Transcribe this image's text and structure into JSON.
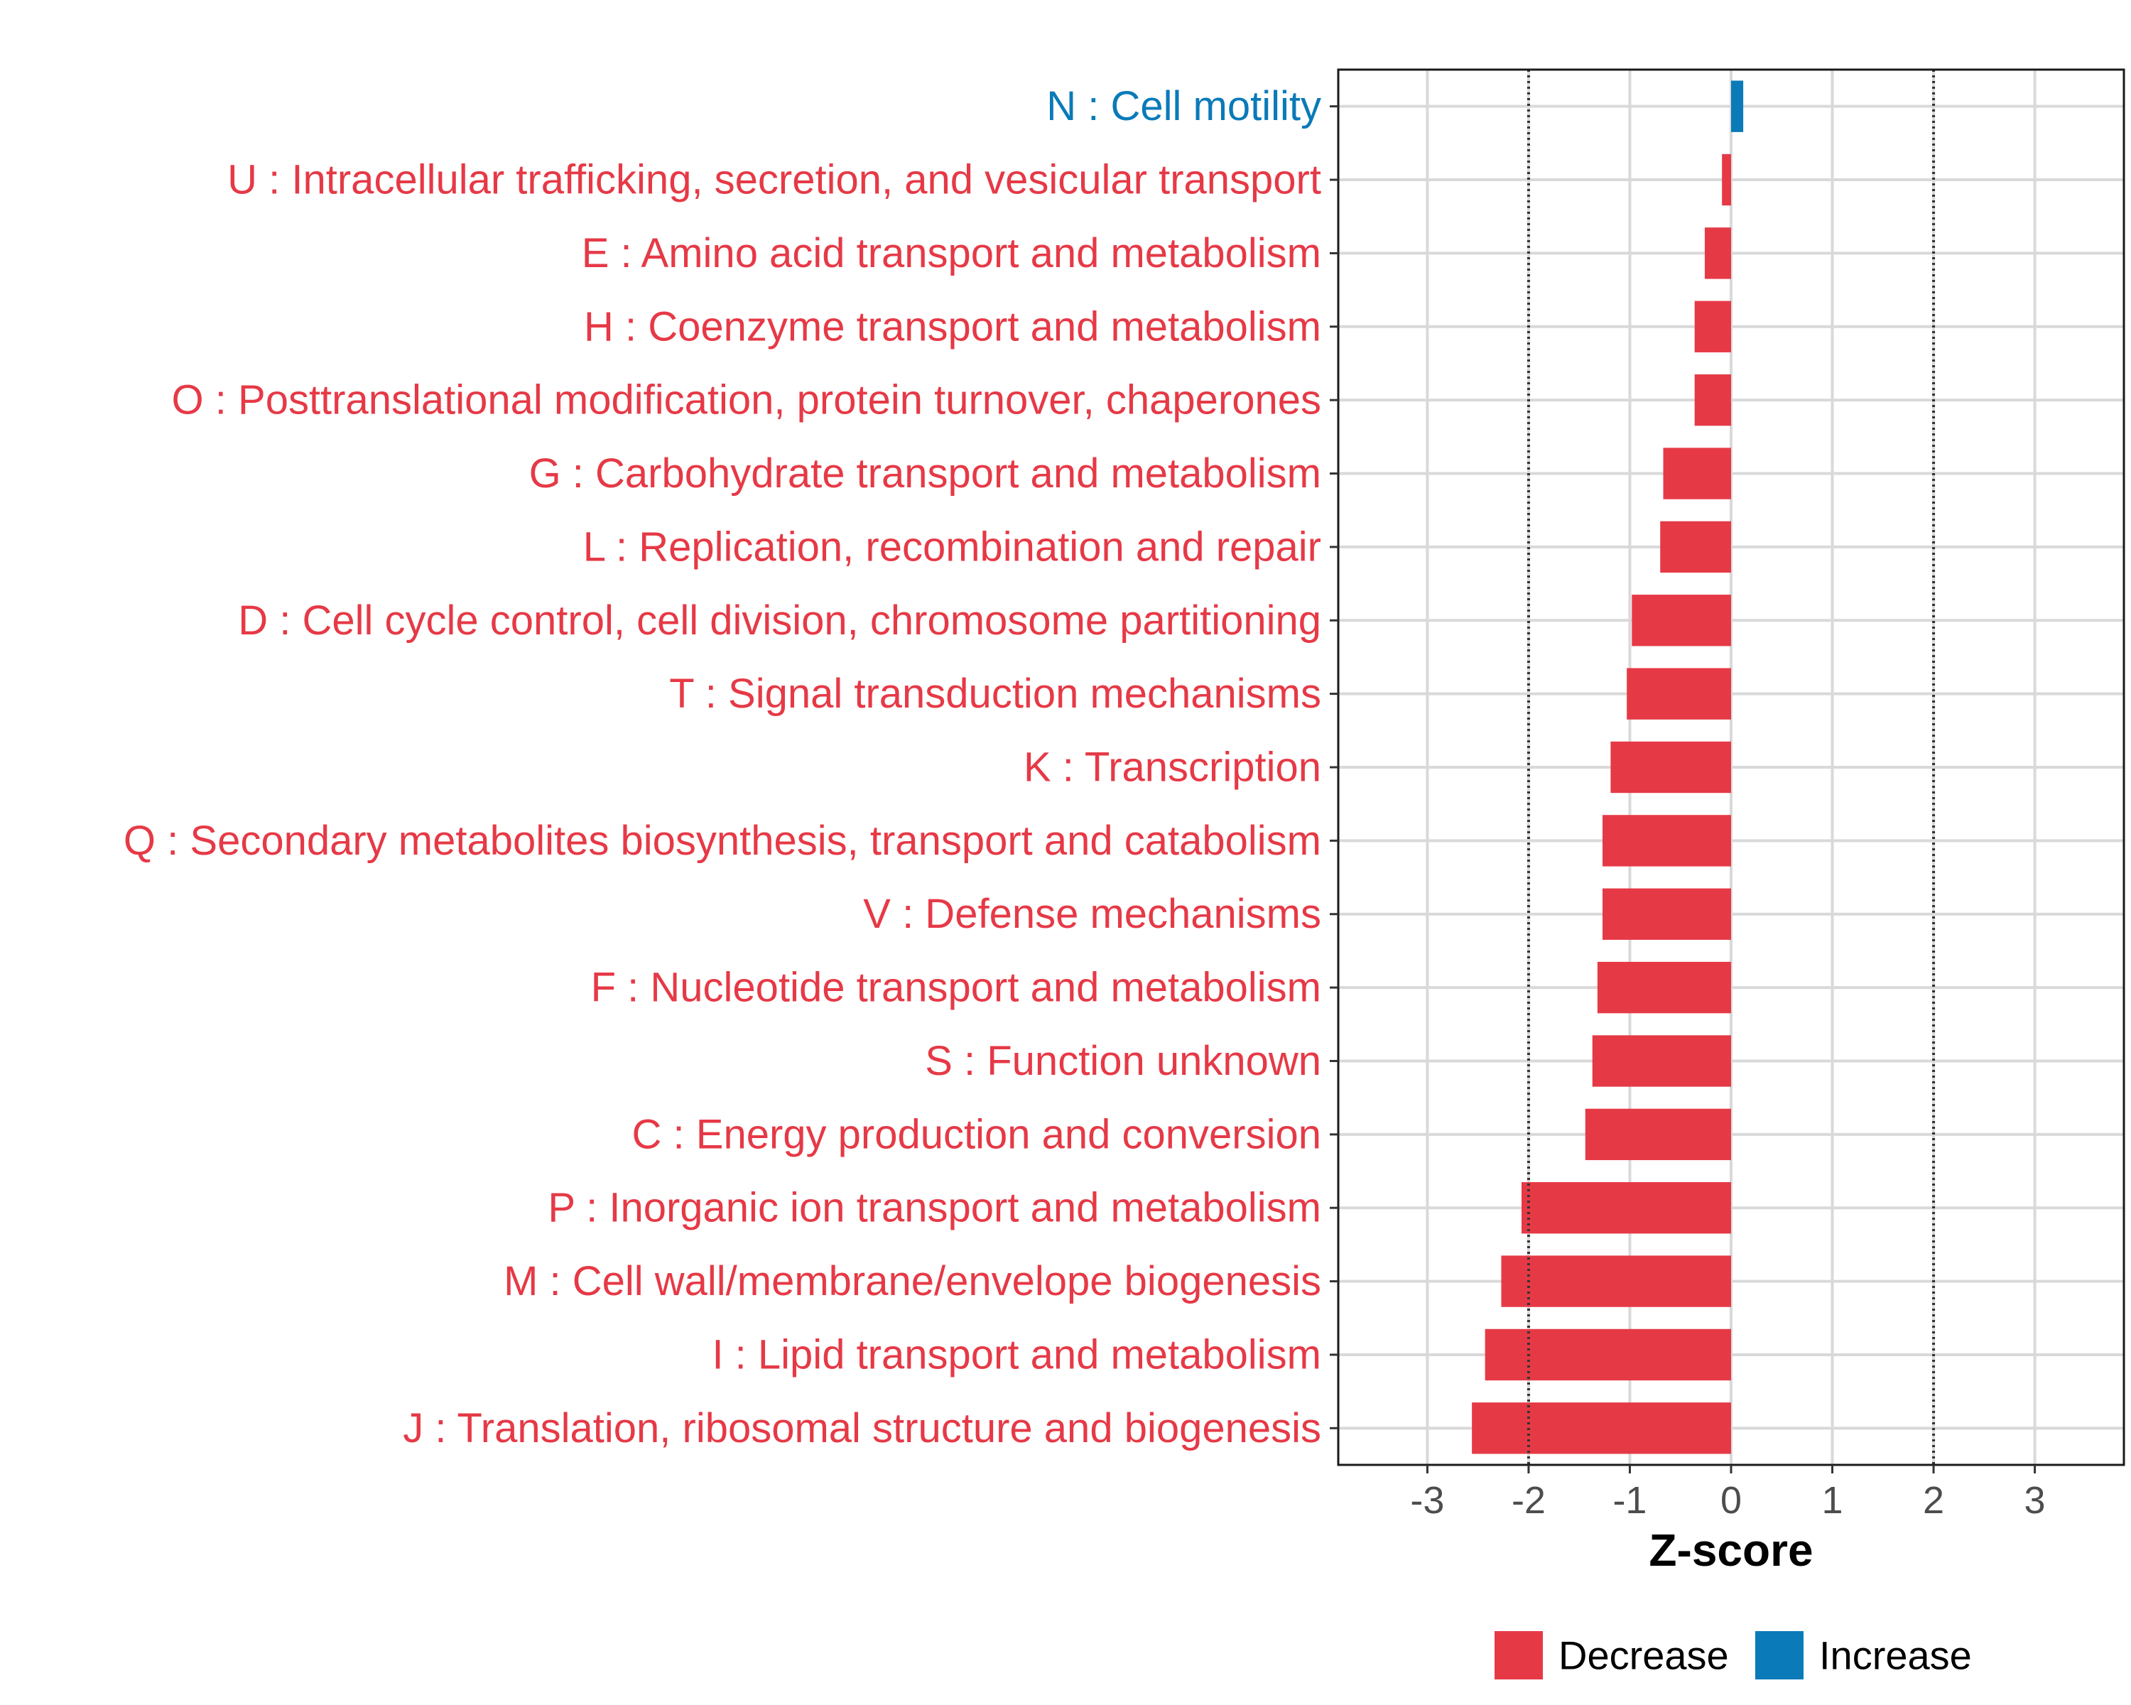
{
  "chart_data": {
    "type": "bar",
    "orientation": "horizontal",
    "xlabel": "Z-score",
    "ylabel": "",
    "xlim": [
      -3.88,
      3.88
    ],
    "x_ticks": [
      -3,
      -2,
      -1,
      0,
      1,
      2,
      3
    ],
    "reference_lines": [
      -2,
      2
    ],
    "grid": true,
    "legend_position": "bottom",
    "colors": {
      "Decrease": "#e63946",
      "Increase": "#0a7ab8"
    },
    "legend": [
      {
        "label": "Decrease",
        "color": "#e63946"
      },
      {
        "label": "Increase",
        "color": "#0a7ab8"
      }
    ],
    "categories": [
      "N : Cell motility",
      "U : Intracellular trafficking, secretion, and vesicular transport",
      "E : Amino acid transport and metabolism",
      "H : Coenzyme transport and metabolism",
      "O : Posttranslational modification, protein turnover, chaperones",
      "G : Carbohydrate transport and metabolism",
      "L : Replication, recombination and repair",
      "D : Cell cycle control, cell division, chromosome partitioning",
      "T : Signal transduction mechanisms",
      "K : Transcription",
      "Q : Secondary metabolites biosynthesis, transport and catabolism",
      "V : Defense mechanisms",
      "F : Nucleotide transport and metabolism",
      "S : Function unknown",
      "C : Energy production and conversion",
      "P : Inorganic ion transport and metabolism",
      "M : Cell wall/membrane/envelope biogenesis",
      "I : Lipid transport and metabolism",
      "J : Translation, ribosomal structure and biogenesis"
    ],
    "values": [
      0.12,
      -0.09,
      -0.26,
      -0.36,
      -0.36,
      -0.67,
      -0.7,
      -0.98,
      -1.03,
      -1.19,
      -1.27,
      -1.27,
      -1.32,
      -1.37,
      -1.44,
      -2.07,
      -2.27,
      -2.43,
      -2.56
    ],
    "direction": [
      "Increase",
      "Decrease",
      "Decrease",
      "Decrease",
      "Decrease",
      "Decrease",
      "Decrease",
      "Decrease",
      "Decrease",
      "Decrease",
      "Decrease",
      "Decrease",
      "Decrease",
      "Decrease",
      "Decrease",
      "Decrease",
      "Decrease",
      "Decrease",
      "Decrease"
    ]
  }
}
